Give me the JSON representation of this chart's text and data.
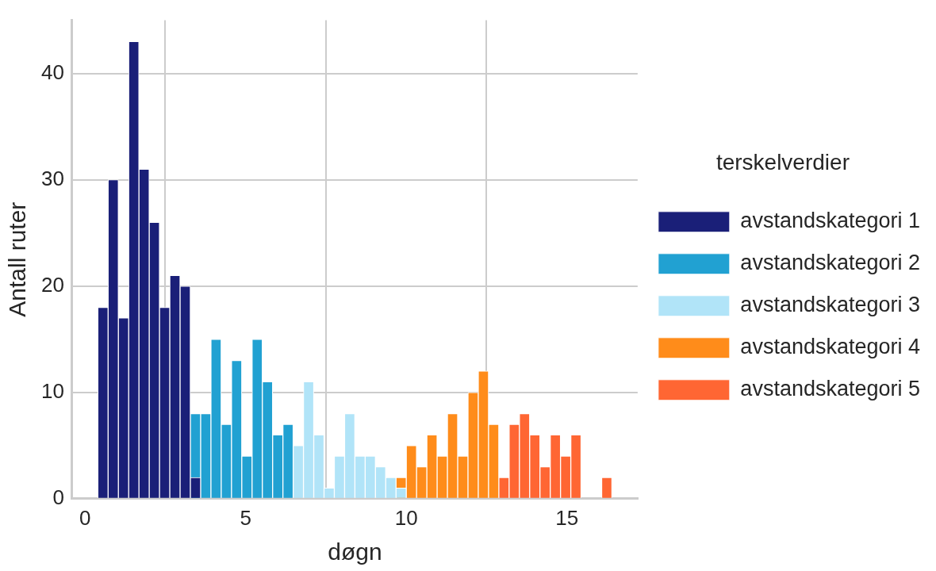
{
  "chart_data": {
    "type": "histogram",
    "xlabel": "døgn",
    "ylabel": "Antall ruter",
    "legend_title": "terskelverdier",
    "bins": [
      0.4,
      0.72,
      1.04,
      1.36,
      1.68,
      2,
      2.32,
      2.64,
      2.96,
      3.28,
      3.6,
      3.92,
      4.24,
      4.56,
      4.88,
      5.2,
      5.52,
      5.84,
      6.16,
      6.48,
      6.8,
      7.12,
      7.44,
      7.76,
      8.08,
      8.4,
      8.72,
      9.04,
      9.36,
      9.68,
      10,
      10.32,
      10.64,
      10.96,
      11.28,
      11.6,
      11.92,
      12.24,
      12.56,
      12.88,
      13.2,
      13.52,
      13.84,
      14.16,
      14.48,
      14.8,
      15.12,
      15.44,
      15.76,
      16.08,
      16.4
    ],
    "series": [
      {
        "name": "avstandskategori 1",
        "color": "#1a1f78",
        "values": [
          18,
          30,
          17,
          43,
          31,
          26,
          18,
          21,
          20,
          2,
          null,
          null,
          null,
          null,
          null,
          null,
          null,
          null,
          null,
          null,
          null,
          null,
          null,
          null,
          null,
          null,
          null,
          null,
          null,
          null,
          null,
          null,
          null,
          null,
          null,
          null,
          null,
          null,
          null,
          null,
          null,
          null,
          null,
          null,
          null,
          null,
          null,
          null,
          null,
          null
        ]
      },
      {
        "name": "avstandskategori 2",
        "color": "#21a1d2",
        "values": [
          null,
          null,
          null,
          null,
          null,
          null,
          null,
          null,
          null,
          8,
          8,
          15,
          7,
          13,
          4,
          15,
          11,
          6,
          7,
          null,
          null,
          null,
          null,
          null,
          null,
          null,
          null,
          null,
          null,
          null,
          null,
          null,
          null,
          null,
          null,
          null,
          null,
          null,
          null,
          null,
          null,
          null,
          null,
          null,
          null,
          null,
          null,
          null,
          null,
          null
        ]
      },
      {
        "name": "avstandskategori 3",
        "color": "#b1e4f8",
        "values": [
          null,
          null,
          null,
          null,
          null,
          null,
          null,
          null,
          null,
          null,
          null,
          null,
          null,
          null,
          null,
          null,
          null,
          null,
          null,
          5,
          11,
          6,
          1,
          4,
          8,
          4,
          4,
          3,
          2,
          1,
          null,
          null,
          null,
          null,
          null,
          null,
          null,
          null,
          null,
          null,
          null,
          null,
          null,
          null,
          null,
          null,
          null,
          null,
          null,
          null
        ]
      },
      {
        "name": "avstandskategori 4",
        "color": "#ff8c1a",
        "values": [
          null,
          null,
          null,
          null,
          null,
          null,
          null,
          null,
          null,
          null,
          null,
          null,
          null,
          null,
          null,
          null,
          null,
          null,
          null,
          null,
          null,
          null,
          null,
          null,
          null,
          null,
          null,
          null,
          null,
          2,
          5,
          3,
          6,
          4,
          8,
          4,
          10,
          12,
          7,
          null,
          null,
          null,
          null,
          null,
          null,
          null,
          null,
          null,
          null,
          null
        ]
      },
      {
        "name": "avstandskategori 5",
        "color": "#ff6633",
        "values": [
          null,
          null,
          null,
          null,
          null,
          null,
          null,
          null,
          null,
          null,
          null,
          null,
          null,
          null,
          null,
          null,
          null,
          null,
          null,
          null,
          null,
          null,
          null,
          null,
          null,
          null,
          null,
          null,
          null,
          null,
          null,
          null,
          null,
          null,
          null,
          null,
          null,
          null,
          null,
          2,
          7,
          8,
          6,
          3,
          6,
          4,
          6,
          null,
          null,
          2
        ]
      }
    ],
    "xlim": [
      -0.4,
      17.2
    ],
    "ylim": [
      0,
      45
    ],
    "xticks": [
      0,
      5,
      10,
      15
    ],
    "yticks": [
      0,
      10,
      20,
      30,
      40
    ],
    "grid": true,
    "legend": "right"
  }
}
